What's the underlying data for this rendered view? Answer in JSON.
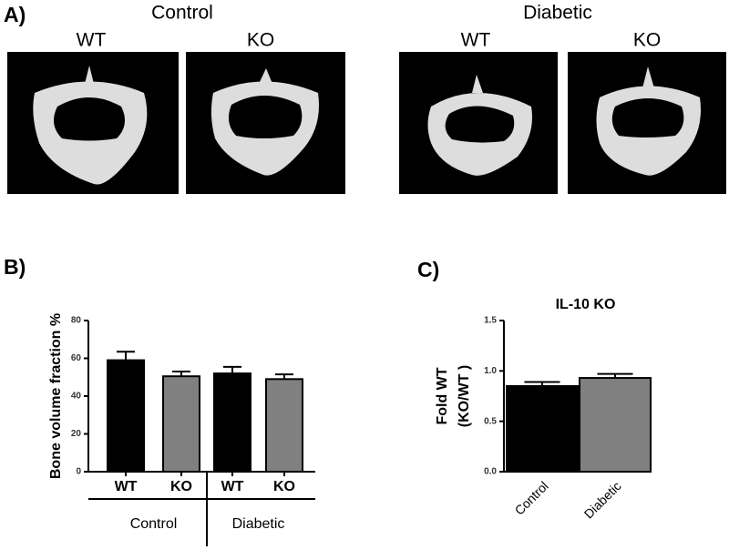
{
  "panels": {
    "a": "A)",
    "b": "B)",
    "c": "C)"
  },
  "images": {
    "groups": [
      {
        "name": "Control",
        "columns": [
          "WT",
          "KO"
        ]
      },
      {
        "name": "Diabetic",
        "columns": [
          "WT",
          "KO"
        ]
      }
    ]
  },
  "chart_data": [
    {
      "type": "bar",
      "y_label": "Bone volume fraction %",
      "categories": [
        "WT",
        "KO",
        "WT",
        "KO"
      ],
      "groups": [
        {
          "name": "Control",
          "span": [
            0,
            1
          ]
        },
        {
          "name": "Diabetic",
          "span": [
            2,
            3
          ]
        }
      ],
      "values": [
        59,
        50.5,
        52,
        49
      ],
      "errors": [
        4.5,
        2.5,
        3.5,
        2.5
      ],
      "colors": [
        "#000000",
        "#808080",
        "#000000",
        "#808080"
      ],
      "ylim": [
        0,
        80
      ],
      "yticks": [
        0,
        20,
        40,
        60,
        80
      ]
    },
    {
      "type": "bar",
      "title": "IL-10 KO",
      "y_label": [
        "Fold WT",
        "(KO/WT )"
      ],
      "categories": [
        "Control",
        "Diabetic"
      ],
      "values": [
        0.85,
        0.93
      ],
      "errors": [
        0.04,
        0.04
      ],
      "colors": [
        "#000000",
        "#808080"
      ],
      "ylim": [
        0,
        1.5
      ],
      "yticks": [
        {
          "value": 0,
          "label": "0.0"
        },
        0.5,
        {
          "value": 1,
          "label": "1.0"
        },
        1.5
      ]
    }
  ]
}
